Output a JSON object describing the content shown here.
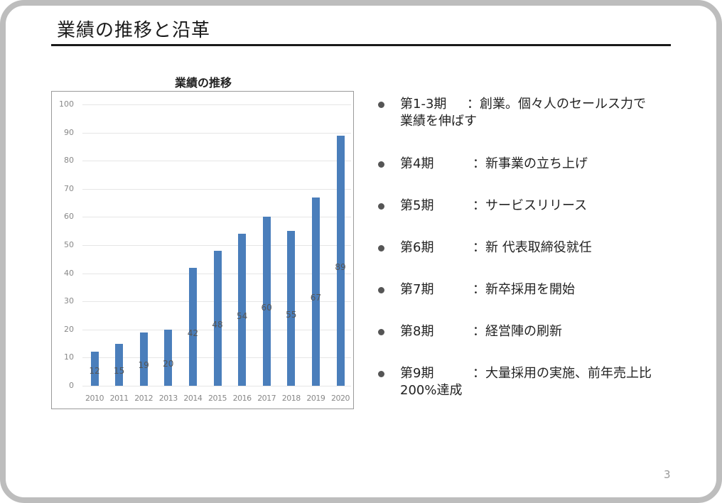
{
  "slide": {
    "title": "業績の推移と沿革",
    "page_number": "3"
  },
  "chart_data": {
    "type": "bar",
    "title": "業績の推移",
    "categories": [
      "2010",
      "2011",
      "2012",
      "2013",
      "2014",
      "2015",
      "2016",
      "2017",
      "2018",
      "2019",
      "2020"
    ],
    "values": [
      12,
      15,
      19,
      20,
      42,
      48,
      54,
      60,
      55,
      67,
      89
    ],
    "xlabel": "",
    "ylabel": "",
    "ylim": [
      0,
      100
    ],
    "yticks": [
      0,
      10,
      20,
      30,
      40,
      50,
      60,
      70,
      80,
      90,
      100
    ],
    "grid": true,
    "legend": "none",
    "data_labels": true,
    "bar_color": "#4a7ebb"
  },
  "history": {
    "items": [
      {
        "period": "第1-3期",
        "separator": "：",
        "text": "創業。個々人のセールス力で業績を伸ばす"
      },
      {
        "period": "第4期",
        "separator": "：",
        "text": "新事業の立ち上げ"
      },
      {
        "period": "第5期",
        "separator": "：",
        "text": "サービスリリース"
      },
      {
        "period": "第6期",
        "separator": "：",
        "text": "新 代表取締役就任"
      },
      {
        "period": "第7期",
        "separator": "：",
        "text": "新卒採用を開始"
      },
      {
        "period": "第8期",
        "separator": "：",
        "text": "経営陣の刷新"
      },
      {
        "period": "第9期",
        "separator": "：",
        "text": "大量採用の実施、前年売上比200%達成"
      }
    ]
  },
  "colors": {
    "frame": "#bdbdbd",
    "bar": "#4a7ebb",
    "text": "#222222"
  }
}
